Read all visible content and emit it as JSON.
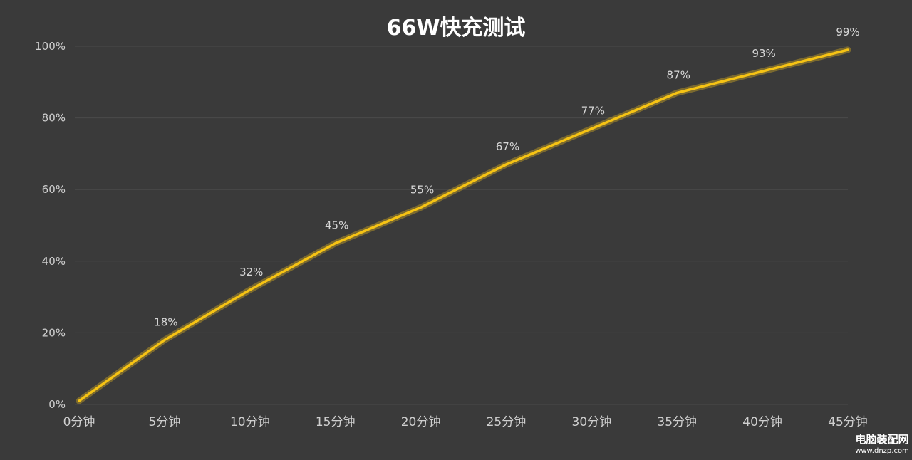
{
  "chart_data": {
    "type": "line",
    "title": "66W快充测试",
    "categories": [
      "0分钟",
      "5分钟",
      "10分钟",
      "15分钟",
      "20分钟",
      "25分钟",
      "30分钟",
      "35分钟",
      "40分钟",
      "45分钟"
    ],
    "series": [
      {
        "values": [
          1,
          18,
          32,
          45,
          55,
          67,
          77,
          87,
          93,
          99
        ]
      }
    ],
    "data_labels": [
      "",
      "18%",
      "32%",
      "45%",
      "55%",
      "67%",
      "77%",
      "87%",
      "93%",
      "99%"
    ],
    "y_ticks": [
      "0%",
      "20%",
      "40%",
      "60%",
      "80%",
      "100%"
    ],
    "ylim": [
      0,
      100
    ],
    "grid": true,
    "line_color": "#f6c314",
    "background": "#3a3a3a"
  },
  "watermark": {
    "name": "电脑装配网",
    "url": "www.dnzp.com"
  }
}
